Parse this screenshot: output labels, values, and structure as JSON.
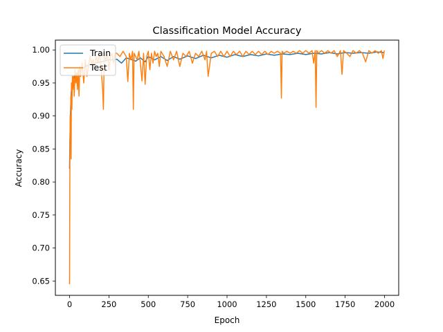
{
  "chart_data": {
    "type": "line",
    "title": "Classification Model Accuracy",
    "xlabel": "Epoch",
    "ylabel": "Accuracy",
    "xlim": [
      -90,
      2090
    ],
    "ylim": [
      0.6283,
      1.0149
    ],
    "xticks": [
      0,
      250,
      500,
      750,
      1000,
      1250,
      1500,
      1750,
      2000
    ],
    "xtick_labels": [
      "0",
      "250",
      "500",
      "750",
      "1000",
      "1250",
      "1500",
      "1750",
      "2000"
    ],
    "yticks": [
      0.65,
      0.7,
      0.75,
      0.8,
      0.85,
      0.9,
      0.95,
      1.0
    ],
    "ytick_labels": [
      "0.65",
      "0.70",
      "0.75",
      "0.80",
      "0.85",
      "0.90",
      "0.95",
      "1.00"
    ],
    "grid": false,
    "legend_position": "upper-left",
    "series": [
      {
        "name": "Train",
        "color": "#1f77b4",
        "x": [
          0,
          2,
          5,
          8,
          10,
          15,
          20,
          25,
          30,
          40,
          50,
          60,
          70,
          80,
          100,
          120,
          140,
          160,
          180,
          200,
          220,
          250,
          280,
          300,
          330,
          360,
          400,
          420,
          450,
          480,
          500,
          540,
          580,
          620,
          660,
          700,
          750,
          800,
          850,
          900,
          950,
          1000,
          1050,
          1100,
          1150,
          1200,
          1250,
          1300,
          1350,
          1400,
          1450,
          1500,
          1550,
          1600,
          1650,
          1700,
          1750,
          1800,
          1850,
          1900,
          1950,
          1999
        ],
        "y": [
          0.82,
          0.86,
          0.9,
          0.92,
          0.935,
          0.945,
          0.95,
          0.955,
          0.96,
          0.962,
          0.965,
          0.968,
          0.97,
          0.972,
          0.975,
          0.977,
          0.979,
          0.98,
          0.981,
          0.982,
          0.983,
          0.985,
          0.985,
          0.986,
          0.98,
          0.988,
          0.985,
          0.983,
          0.988,
          0.982,
          0.99,
          0.985,
          0.99,
          0.984,
          0.99,
          0.986,
          0.991,
          0.987,
          0.992,
          0.988,
          0.992,
          0.989,
          0.993,
          0.99,
          0.993,
          0.991,
          0.994,
          0.992,
          0.994,
          0.993,
          0.995,
          0.993,
          0.995,
          0.994,
          0.996,
          0.994,
          0.996,
          0.995,
          0.996,
          0.995,
          0.997,
          0.996
        ]
      },
      {
        "name": "Test",
        "color": "#ff7f0e",
        "x": [
          0,
          2,
          4,
          6,
          8,
          10,
          12,
          15,
          18,
          20,
          25,
          30,
          35,
          40,
          45,
          50,
          55,
          60,
          65,
          70,
          75,
          80,
          90,
          100,
          110,
          120,
          130,
          140,
          150,
          160,
          170,
          180,
          190,
          200,
          210,
          215,
          220,
          230,
          240,
          250,
          260,
          270,
          280,
          290,
          300,
          320,
          340,
          360,
          370,
          380,
          390,
          400,
          405,
          410,
          420,
          430,
          440,
          450,
          460,
          470,
          480,
          490,
          500,
          510,
          520,
          530,
          540,
          550,
          560,
          570,
          580,
          600,
          620,
          640,
          660,
          680,
          700,
          720,
          740,
          760,
          780,
          800,
          820,
          840,
          860,
          870,
          880,
          900,
          920,
          940,
          960,
          980,
          1000,
          1020,
          1040,
          1060,
          1080,
          1100,
          1120,
          1140,
          1160,
          1180,
          1200,
          1220,
          1240,
          1260,
          1280,
          1300,
          1320,
          1340,
          1345,
          1350,
          1360,
          1380,
          1400,
          1420,
          1440,
          1460,
          1480,
          1500,
          1520,
          1540,
          1550,
          1560,
          1565,
          1570,
          1580,
          1600,
          1620,
          1640,
          1660,
          1680,
          1700,
          1720,
          1730,
          1740,
          1760,
          1780,
          1800,
          1820,
          1840,
          1860,
          1880,
          1900,
          1920,
          1940,
          1960,
          1980,
          1990,
          1999
        ],
        "y": [
          0.645,
          0.82,
          0.9,
          0.86,
          0.93,
          0.835,
          0.95,
          0.91,
          0.96,
          0.94,
          0.96,
          0.93,
          0.97,
          0.95,
          0.965,
          0.94,
          0.97,
          0.93,
          0.975,
          0.96,
          0.97,
          0.98,
          0.95,
          0.985,
          0.96,
          0.975,
          0.99,
          0.98,
          0.985,
          0.975,
          0.99,
          0.98,
          0.995,
          0.975,
          0.94,
          0.91,
          0.99,
          0.985,
          0.995,
          0.97,
          0.99,
          0.995,
          0.98,
          0.995,
          0.995,
          0.99,
          0.998,
          0.99,
          0.952,
          0.995,
          0.985,
          0.998,
          0.91,
          0.995,
          0.99,
          0.985,
          0.998,
          0.98,
          0.953,
          0.995,
          0.948,
          0.99,
          0.998,
          0.97,
          0.995,
          0.98,
          0.998,
          0.99,
          0.995,
          0.975,
          0.998,
          0.99,
          0.975,
          0.998,
          0.985,
          0.998,
          0.975,
          0.995,
          0.99,
          0.998,
          0.98,
          0.995,
          0.99,
          0.998,
          0.985,
          0.998,
          0.96,
          0.995,
          0.998,
          0.99,
          0.998,
          0.99,
          0.998,
          0.99,
          0.998,
          0.993,
          0.998,
          0.99,
          0.998,
          0.993,
          0.998,
          0.993,
          0.998,
          0.993,
          0.998,
          0.993,
          0.998,
          0.995,
          0.998,
          0.995,
          0.927,
          0.998,
          0.995,
          0.998,
          0.995,
          0.998,
          0.995,
          0.999,
          0.995,
          0.999,
          0.995,
          0.999,
          0.98,
          0.999,
          0.913,
          0.999,
          0.995,
          0.999,
          0.995,
          0.999,
          0.995,
          0.999,
          0.99,
          0.999,
          0.963,
          0.999,
          0.995,
          0.99,
          0.999,
          0.995,
          0.999,
          0.995,
          0.982,
          0.999,
          0.995,
          0.999,
          0.995,
          0.999,
          0.987,
          0.999
        ]
      }
    ]
  }
}
